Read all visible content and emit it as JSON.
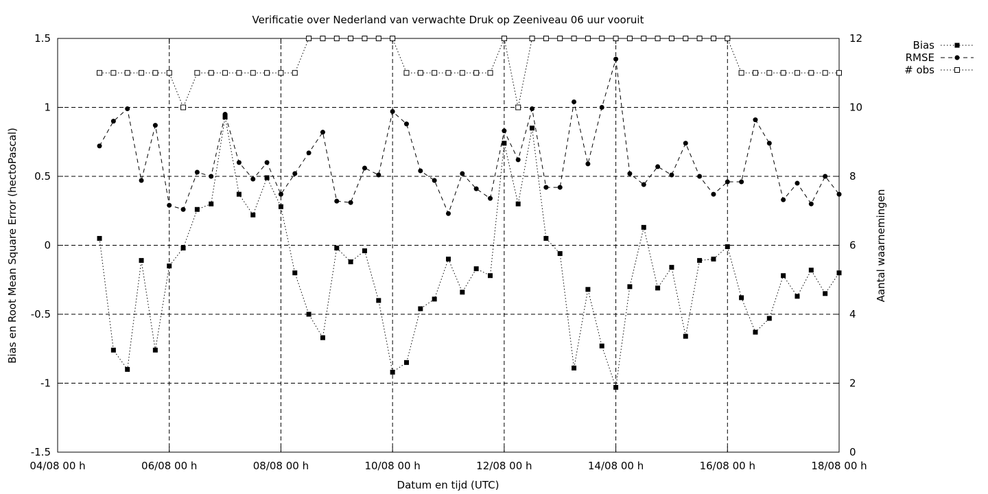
{
  "chart_data": {
    "type": "line",
    "title": "Verificatie over Nederland van verwachte Druk op Zeeniveau 06 uur vooruit",
    "xlabel": "Datum en tijd (UTC)",
    "ylabel": "Bias en Root Mean Square Error (hectoPascal)",
    "y2label": "Aantal waarnemingen",
    "x_ticks": [
      "04/08 00 h",
      "06/08 00 h",
      "08/08 00 h",
      "10/08 00 h",
      "12/08 00 h",
      "14/08 00 h",
      "16/08 00 h",
      "18/08 00 h"
    ],
    "y_ticks": [
      "-1.5",
      "-1",
      "-0.5",
      "0",
      "0.5",
      "1",
      "1.5"
    ],
    "y2_ticks": [
      "0",
      "2",
      "4",
      "6",
      "8",
      "10",
      "12"
    ],
    "ylim": [
      -1.5,
      1.5
    ],
    "y2lim": [
      0,
      12
    ],
    "x_range_hours": [
      0,
      336
    ],
    "x_interval_hours": 6,
    "x_start_hours": 18,
    "grid": true,
    "legend_position": "top-right-outside",
    "series": [
      {
        "name": "Bias",
        "axis": "left",
        "marker": "filled-square",
        "line": "dotted",
        "values": [
          0.05,
          -0.76,
          -0.9,
          -0.11,
          -0.76,
          -0.15,
          -0.02,
          0.26,
          0.3,
          0.93,
          0.37,
          0.22,
          0.49,
          0.28,
          -0.2,
          -0.5,
          -0.67,
          -0.02,
          -0.12,
          -0.04,
          -0.4,
          -0.92,
          -0.85,
          -0.46,
          -0.39,
          -0.1,
          -0.34,
          -0.17,
          -0.22,
          0.74,
          0.3,
          0.85,
          0.05,
          -0.06,
          -0.89,
          -0.32,
          -0.73,
          -1.03,
          -0.3,
          0.13,
          -0.31,
          -0.16,
          -0.66,
          -0.11,
          -0.1,
          -0.01,
          -0.38,
          -0.63,
          -0.53,
          -0.22,
          -0.37,
          -0.18,
          -0.35,
          -0.2
        ]
      },
      {
        "name": "RMSE",
        "axis": "left",
        "marker": "filled-circle",
        "line": "dashed",
        "values": [
          0.72,
          0.9,
          0.99,
          0.47,
          0.87,
          0.29,
          0.26,
          0.53,
          0.5,
          0.95,
          0.6,
          0.48,
          0.6,
          0.37,
          0.52,
          0.67,
          0.82,
          0.32,
          0.31,
          0.56,
          0.51,
          0.97,
          0.88,
          0.54,
          0.47,
          0.23,
          0.52,
          0.41,
          0.34,
          0.83,
          0.62,
          0.99,
          0.42,
          0.42,
          1.04,
          0.59,
          1.0,
          1.35,
          0.52,
          0.44,
          0.57,
          0.51,
          0.74,
          0.5,
          0.37,
          0.46,
          0.46,
          0.91,
          0.74,
          0.33,
          0.45,
          0.3,
          0.5,
          0.37
        ]
      },
      {
        "name": "# obs",
        "axis": "right",
        "marker": "open-square",
        "line": "dotted",
        "values": [
          11,
          11,
          11,
          11,
          11,
          11,
          10,
          11,
          11,
          11,
          11,
          11,
          11,
          11,
          11,
          12,
          12,
          12,
          12,
          12,
          12,
          12,
          11,
          11,
          11,
          11,
          11,
          11,
          11,
          12,
          10,
          12,
          12,
          12,
          12,
          12,
          12,
          12,
          12,
          12,
          12,
          12,
          12,
          12,
          12,
          12,
          11,
          11,
          11,
          11,
          11,
          11,
          11,
          11
        ]
      }
    ]
  }
}
